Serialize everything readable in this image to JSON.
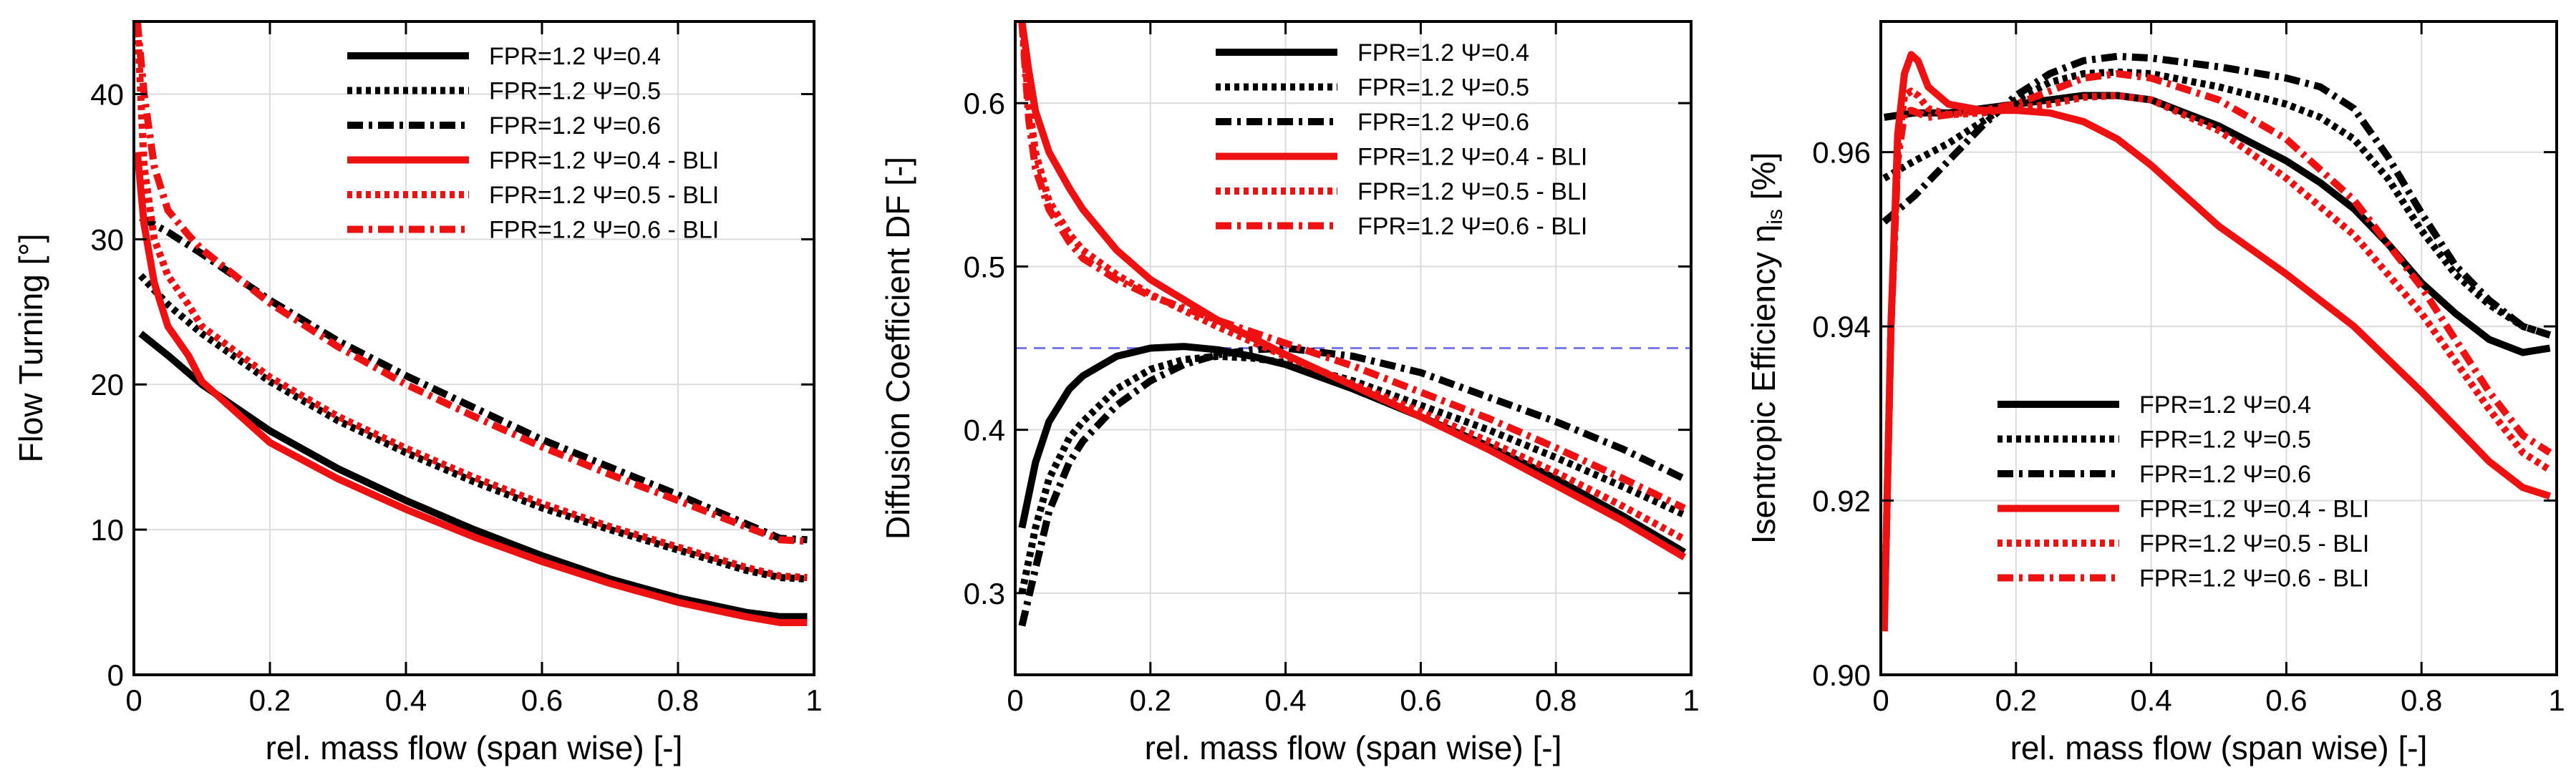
{
  "chart_data": [
    {
      "type": "line",
      "xlabel": "rel. mass flow (span wise) [-]",
      "ylabel": "Flow Turning [°]",
      "xlim": [
        0,
        1
      ],
      "ylim": [
        0,
        45
      ],
      "xticks": [
        0,
        0.2,
        0.4,
        0.6,
        0.8,
        1
      ],
      "yticks": [
        0,
        10,
        20,
        30,
        40
      ],
      "xtick_labels": [
        "0",
        "0.2",
        "0.4",
        "0.6",
        "0.8",
        "1"
      ],
      "ytick_labels": [
        "0",
        "10",
        "20",
        "30",
        "40"
      ],
      "grid": true,
      "legend_position": "top-center",
      "series": [
        {
          "name": "FPR=1.2 Ψ=0.4",
          "color": "#000000",
          "dash": "solid",
          "x": [
            0.01,
            0.05,
            0.1,
            0.2,
            0.3,
            0.4,
            0.5,
            0.6,
            0.7,
            0.8,
            0.9,
            0.95,
            0.99
          ],
          "y": [
            23.5,
            22,
            20,
            16.8,
            14.2,
            12,
            10,
            8.2,
            6.6,
            5.3,
            4.3,
            4.0,
            4.0
          ]
        },
        {
          "name": "FPR=1.2 Ψ=0.5",
          "color": "#000000",
          "dash": "dotted",
          "x": [
            0.01,
            0.05,
            0.1,
            0.2,
            0.3,
            0.4,
            0.5,
            0.6,
            0.7,
            0.8,
            0.9,
            0.95,
            0.99
          ],
          "y": [
            27.5,
            25.5,
            23.5,
            20.2,
            17.5,
            15.3,
            13.3,
            11.5,
            10,
            8.6,
            7.2,
            6.7,
            6.6
          ]
        },
        {
          "name": "FPR=1.2 Ψ=0.6",
          "color": "#000000",
          "dash": "dashdot",
          "x": [
            0.01,
            0.05,
            0.1,
            0.2,
            0.3,
            0.4,
            0.5,
            0.6,
            0.7,
            0.8,
            0.9,
            0.95,
            0.99
          ],
          "y": [
            31.5,
            30.5,
            29,
            25.8,
            23,
            20.6,
            18.4,
            16.2,
            14.3,
            12.4,
            10.4,
            9.4,
            9.3
          ]
        },
        {
          "name": "FPR=1.2 Ψ=0.4 - BLI",
          "color": "#ee1111",
          "dash": "solid",
          "x": [
            0.005,
            0.015,
            0.03,
            0.05,
            0.08,
            0.1,
            0.2,
            0.3,
            0.4,
            0.5,
            0.6,
            0.7,
            0.8,
            0.9,
            0.95,
            0.99
          ],
          "y": [
            36,
            31,
            27,
            24,
            22,
            20.2,
            16,
            13.5,
            11.4,
            9.5,
            7.8,
            6.3,
            5,
            4,
            3.6,
            3.6
          ]
        },
        {
          "name": "FPR=1.2 Ψ=0.5 - BLI",
          "color": "#ee1111",
          "dash": "dotted",
          "x": [
            0.005,
            0.015,
            0.03,
            0.05,
            0.08,
            0.1,
            0.2,
            0.3,
            0.4,
            0.5,
            0.6,
            0.7,
            0.8,
            0.9,
            0.95,
            0.99
          ],
          "y": [
            45,
            35,
            30,
            27.5,
            25.5,
            24,
            20.5,
            17.8,
            15.6,
            13.6,
            11.8,
            10.2,
            8.8,
            7.4,
            6.8,
            6.7
          ]
        },
        {
          "name": "FPR=1.2 Ψ=0.6 - BLI",
          "color": "#ee1111",
          "dash": "dashdot",
          "x": [
            0.005,
            0.015,
            0.03,
            0.05,
            0.08,
            0.1,
            0.2,
            0.3,
            0.4,
            0.5,
            0.6,
            0.7,
            0.8,
            0.9,
            0.95,
            0.99
          ],
          "y": [
            45,
            40,
            35,
            32,
            30.3,
            29.3,
            25.6,
            22.6,
            20,
            17.8,
            15.7,
            13.8,
            12,
            10.2,
            9.3,
            9.2
          ]
        }
      ]
    },
    {
      "type": "line",
      "xlabel": "rel. mass flow (span wise) [-]",
      "ylabel": "Diffusion Coefficient DF [-]",
      "xlim": [
        0,
        1
      ],
      "ylim": [
        0.25,
        0.65
      ],
      "xticks": [
        0,
        0.2,
        0.4,
        0.6,
        0.8,
        1
      ],
      "yticks": [
        0.3,
        0.4,
        0.5,
        0.6
      ],
      "xtick_labels": [
        "0",
        "0.2",
        "0.4",
        "0.6",
        "0.8",
        "1"
      ],
      "ytick_labels": [
        "0.3",
        "0.4",
        "0.5",
        "0.6"
      ],
      "grid": true,
      "legend_position": "top-center",
      "reference_line": {
        "y": 0.45,
        "color": "#7a7aee",
        "dash": "dashed"
      },
      "series": [
        {
          "name": "FPR=1.2 Ψ=0.4",
          "color": "#000000",
          "dash": "solid",
          "x": [
            0.01,
            0.03,
            0.05,
            0.08,
            0.1,
            0.15,
            0.2,
            0.25,
            0.3,
            0.35,
            0.4,
            0.5,
            0.6,
            0.7,
            0.8,
            0.9,
            0.99
          ],
          "y": [
            0.34,
            0.38,
            0.405,
            0.425,
            0.433,
            0.445,
            0.45,
            0.451,
            0.449,
            0.445,
            0.44,
            0.425,
            0.408,
            0.39,
            0.37,
            0.347,
            0.325
          ]
        },
        {
          "name": "FPR=1.2 Ψ=0.5",
          "color": "#000000",
          "dash": "dotted",
          "x": [
            0.01,
            0.03,
            0.05,
            0.08,
            0.1,
            0.15,
            0.2,
            0.25,
            0.3,
            0.35,
            0.4,
            0.5,
            0.6,
            0.7,
            0.8,
            0.9,
            0.99
          ],
          "y": [
            0.3,
            0.34,
            0.37,
            0.395,
            0.405,
            0.425,
            0.437,
            0.443,
            0.445,
            0.444,
            0.441,
            0.43,
            0.415,
            0.4,
            0.383,
            0.365,
            0.348
          ]
        },
        {
          "name": "FPR=1.2 Ψ=0.6",
          "color": "#000000",
          "dash": "dashdot",
          "x": [
            0.01,
            0.03,
            0.05,
            0.08,
            0.1,
            0.15,
            0.2,
            0.25,
            0.3,
            0.35,
            0.4,
            0.5,
            0.6,
            0.7,
            0.8,
            0.9,
            0.99
          ],
          "y": [
            0.28,
            0.315,
            0.35,
            0.38,
            0.393,
            0.415,
            0.43,
            0.44,
            0.446,
            0.449,
            0.45,
            0.445,
            0.435,
            0.42,
            0.405,
            0.388,
            0.37
          ]
        },
        {
          "name": "FPR=1.2 Ψ=0.4 - BLI",
          "color": "#ee1111",
          "dash": "solid",
          "x": [
            0.01,
            0.02,
            0.03,
            0.05,
            0.08,
            0.1,
            0.15,
            0.2,
            0.3,
            0.4,
            0.5,
            0.6,
            0.7,
            0.8,
            0.9,
            0.99
          ],
          "y": [
            0.65,
            0.62,
            0.595,
            0.57,
            0.548,
            0.535,
            0.51,
            0.492,
            0.467,
            0.446,
            0.427,
            0.408,
            0.388,
            0.366,
            0.344,
            0.322
          ]
        },
        {
          "name": "FPR=1.2 Ψ=0.5 - BLI",
          "color": "#ee1111",
          "dash": "dotted",
          "x": [
            0.01,
            0.02,
            0.03,
            0.05,
            0.08,
            0.1,
            0.15,
            0.2,
            0.3,
            0.4,
            0.5,
            0.6,
            0.7,
            0.8,
            0.9,
            0.99
          ],
          "y": [
            0.65,
            0.6,
            0.57,
            0.54,
            0.52,
            0.51,
            0.495,
            0.483,
            0.463,
            0.445,
            0.428,
            0.411,
            0.393,
            0.374,
            0.353,
            0.333
          ]
        },
        {
          "name": "FPR=1.2 Ψ=0.6 - BLI",
          "color": "#ee1111",
          "dash": "dashdot",
          "x": [
            0.01,
            0.02,
            0.03,
            0.05,
            0.08,
            0.1,
            0.15,
            0.2,
            0.3,
            0.4,
            0.5,
            0.6,
            0.7,
            0.8,
            0.9,
            0.99
          ],
          "y": [
            0.65,
            0.59,
            0.56,
            0.535,
            0.515,
            0.505,
            0.492,
            0.482,
            0.467,
            0.453,
            0.439,
            0.423,
            0.407,
            0.389,
            0.37,
            0.352
          ]
        }
      ]
    },
    {
      "type": "line",
      "xlabel": "rel. mass flow (span wise) [-]",
      "ylabel": "Isentropic Efficiency",
      "ylabel_symbol": "η",
      "ylabel_subscript": "is",
      "ylabel_unit": "[%]",
      "xlim": [
        0,
        1
      ],
      "ylim": [
        0.9,
        0.975
      ],
      "xticks": [
        0,
        0.2,
        0.4,
        0.6,
        0.8,
        1
      ],
      "yticks": [
        0.9,
        0.92,
        0.94,
        0.96
      ],
      "xtick_labels": [
        "0",
        "0.2",
        "0.4",
        "0.6",
        "0.8",
        "1"
      ],
      "ytick_labels": [
        "0.90",
        "0.92",
        "0.94",
        "0.96"
      ],
      "grid": true,
      "legend_position": "bottom-center",
      "series": [
        {
          "name": "FPR=1.2 Ψ=0.4",
          "color": "#000000",
          "dash": "solid",
          "x": [
            0.005,
            0.05,
            0.1,
            0.15,
            0.2,
            0.25,
            0.3,
            0.35,
            0.4,
            0.5,
            0.6,
            0.65,
            0.7,
            0.75,
            0.8,
            0.85,
            0.9,
            0.95,
            0.99
          ],
          "y": [
            0.964,
            0.9645,
            0.9645,
            0.965,
            0.9655,
            0.966,
            0.9665,
            0.9665,
            0.966,
            0.963,
            0.959,
            0.9565,
            0.9535,
            0.9495,
            0.945,
            0.9415,
            0.9385,
            0.937,
            0.9375
          ]
        },
        {
          "name": "FPR=1.2 Ψ=0.5",
          "color": "#000000",
          "dash": "dotted",
          "x": [
            0.005,
            0.05,
            0.1,
            0.15,
            0.2,
            0.25,
            0.3,
            0.35,
            0.4,
            0.5,
            0.6,
            0.65,
            0.7,
            0.75,
            0.8,
            0.85,
            0.9,
            0.95,
            0.99
          ],
          "y": [
            0.957,
            0.959,
            0.961,
            0.9635,
            0.966,
            0.968,
            0.969,
            0.9692,
            0.969,
            0.9675,
            0.9655,
            0.964,
            0.9615,
            0.957,
            0.951,
            0.946,
            0.9425,
            0.94,
            0.939
          ]
        },
        {
          "name": "FPR=1.2 Ψ=0.6",
          "color": "#000000",
          "dash": "dashdot",
          "x": [
            0.005,
            0.05,
            0.1,
            0.15,
            0.2,
            0.25,
            0.3,
            0.35,
            0.4,
            0.5,
            0.6,
            0.65,
            0.7,
            0.75,
            0.8,
            0.85,
            0.9,
            0.95,
            0.99
          ],
          "y": [
            0.952,
            0.955,
            0.959,
            0.963,
            0.9665,
            0.969,
            0.9705,
            0.971,
            0.9708,
            0.9698,
            0.9685,
            0.9675,
            0.965,
            0.9595,
            0.953,
            0.947,
            0.943,
            0.94,
            0.939
          ]
        },
        {
          "name": "FPR=1.2 Ψ=0.4 - BLI",
          "color": "#ee1111",
          "dash": "solid",
          "x": [
            0.005,
            0.015,
            0.025,
            0.035,
            0.045,
            0.055,
            0.07,
            0.1,
            0.15,
            0.2,
            0.25,
            0.3,
            0.35,
            0.4,
            0.5,
            0.6,
            0.7,
            0.8,
            0.85,
            0.9,
            0.95,
            0.99
          ],
          "y": [
            0.905,
            0.94,
            0.962,
            0.969,
            0.9712,
            0.9705,
            0.9675,
            0.9655,
            0.9648,
            0.9648,
            0.9645,
            0.9635,
            0.9615,
            0.9585,
            0.9515,
            0.946,
            0.94,
            0.9325,
            0.9285,
            0.9245,
            0.9215,
            0.9205
          ]
        },
        {
          "name": "FPR=1.2 Ψ=0.5 - BLI",
          "color": "#ee1111",
          "dash": "dotted",
          "x": [
            0.005,
            0.015,
            0.025,
            0.035,
            0.045,
            0.055,
            0.07,
            0.1,
            0.15,
            0.2,
            0.25,
            0.3,
            0.35,
            0.4,
            0.5,
            0.6,
            0.7,
            0.8,
            0.85,
            0.9,
            0.95,
            0.99
          ],
          "y": [
            0.905,
            0.94,
            0.96,
            0.9665,
            0.967,
            0.9665,
            0.965,
            0.9643,
            0.9645,
            0.965,
            0.9655,
            0.9663,
            0.9665,
            0.966,
            0.9625,
            0.957,
            0.9505,
            0.9415,
            0.936,
            0.9305,
            0.9255,
            0.9235
          ]
        },
        {
          "name": "FPR=1.2 Ψ=0.6 - BLI",
          "color": "#ee1111",
          "dash": "dashdot",
          "x": [
            0.005,
            0.015,
            0.025,
            0.035,
            0.045,
            0.055,
            0.07,
            0.1,
            0.15,
            0.2,
            0.25,
            0.3,
            0.35,
            0.4,
            0.5,
            0.6,
            0.7,
            0.8,
            0.85,
            0.9,
            0.95,
            0.99
          ],
          "y": [
            0.905,
            0.94,
            0.959,
            0.9645,
            0.9648,
            0.9645,
            0.964,
            0.9643,
            0.9648,
            0.9655,
            0.967,
            0.9685,
            0.969,
            0.9685,
            0.966,
            0.9615,
            0.9545,
            0.9445,
            0.9385,
            0.9325,
            0.9275,
            0.9255
          ]
        }
      ]
    }
  ]
}
